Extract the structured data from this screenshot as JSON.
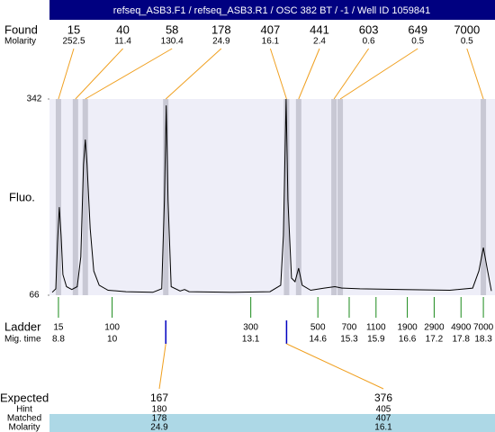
{
  "chart_data": {
    "type": "line",
    "title": "refseq_ASB3.F1 / refseq_ASB3.R1 / OSC 382 BT / -1 / Well ID 1059841",
    "y_label": "Fluo.",
    "ylim": [
      66,
      342
    ],
    "yticks": [
      66,
      342
    ],
    "xlim": [
      8.6,
      18.56
    ],
    "color": "#000000",
    "x": [
      8.66,
      8.74,
      8.78,
      8.82,
      8.86,
      8.9,
      8.98,
      9.1,
      9.22,
      9.3,
      9.36,
      9.4,
      9.44,
      9.51,
      9.59,
      9.71,
      9.91,
      10.31,
      10.91,
      11.11,
      11.17,
      11.21,
      11.25,
      11.32,
      11.52,
      11.62,
      11.72,
      12.73,
      13.53,
      13.77,
      13.83,
      13.89,
      13.93,
      14.01,
      14.09,
      14.17,
      14.25,
      14.44,
      14.74,
      14.98,
      15.14,
      15.54,
      16.55,
      17.55,
      18.06,
      18.2,
      18.3,
      18.38,
      18.48
    ],
    "values": [
      70,
      75,
      140,
      190,
      150,
      95,
      78,
      74,
      78,
      120,
      250,
      285,
      250,
      160,
      100,
      80,
      73,
      71,
      70,
      75,
      200,
      333,
      200,
      78,
      72,
      74,
      71,
      70,
      71,
      80,
      150,
      342,
      200,
      90,
      85,
      104,
      80,
      73,
      76,
      78,
      76,
      75,
      74,
      73,
      76,
      100,
      133,
      105,
      72
    ],
    "found": {
      "label": "Found",
      "molarity_label": "Molarity",
      "sizes": [
        15,
        40,
        58,
        178,
        407,
        441,
        603,
        649,
        7000
      ],
      "molarity": [
        252.5,
        11.4,
        130.4,
        24.9,
        16.1,
        2.4,
        0.6,
        0.5,
        0.5
      ],
      "x": [
        8.8,
        9.18,
        9.4,
        11.2,
        13.9,
        14.17,
        14.96,
        15.1,
        18.3
      ]
    },
    "ladder": {
      "label": "Ladder",
      "time_label": "Mig. time",
      "sizes": [
        15,
        100,
        300,
        500,
        700,
        1100,
        1900,
        2900,
        4900,
        7000
      ],
      "times": [
        8.8,
        10,
        13.1,
        14.6,
        15.3,
        15.9,
        16.6,
        17.2,
        17.8,
        18.3
      ]
    },
    "expected": {
      "labels": [
        "Expected",
        "Hint",
        "Matched",
        "Molarity"
      ],
      "sizes": [
        167,
        376
      ],
      "hint": [
        180,
        405
      ],
      "matched": [
        178,
        407
      ],
      "molarity": [
        24.9,
        16.1
      ],
      "x": [
        11.2,
        13.9
      ]
    }
  }
}
